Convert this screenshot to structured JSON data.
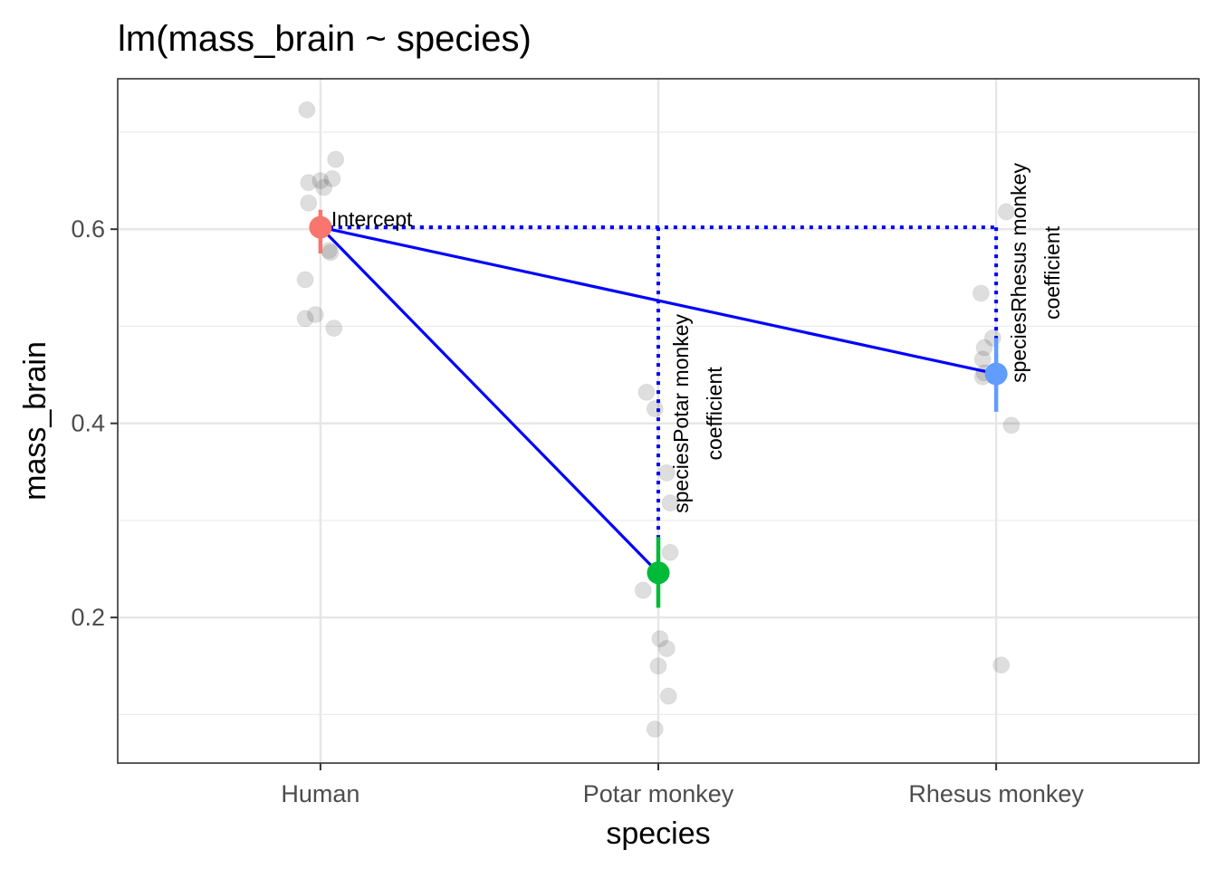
{
  "chart_data": {
    "type": "scatter",
    "title": "lm(mass_brain ~ species)",
    "xlabel": "species",
    "ylabel": "mass_brain",
    "categories": [
      "Human",
      "Potar monkey",
      "Rhesus monkey"
    ],
    "ylim": [
      0.05,
      0.755
    ],
    "yticks": [
      0.2,
      0.4,
      0.6
    ],
    "yticks_labels": [
      "0.2",
      "0.4",
      "0.6"
    ],
    "grid": true,
    "legend": "none",
    "raw_points": [
      {
        "category": "Human",
        "y": 0.723,
        "jitter": -0.04
      },
      {
        "category": "Human",
        "y": 0.672,
        "jitter": 0.045
      },
      {
        "category": "Human",
        "y": 0.652,
        "jitter": 0.035
      },
      {
        "category": "Human",
        "y": 0.648,
        "jitter": -0.035
      },
      {
        "category": "Human",
        "y": 0.65,
        "jitter": 0.0
      },
      {
        "category": "Human",
        "y": 0.643,
        "jitter": 0.01
      },
      {
        "category": "Human",
        "y": 0.627,
        "jitter": -0.035
      },
      {
        "category": "Human",
        "y": 0.603,
        "jitter": 0.005
      },
      {
        "category": "Human",
        "y": 0.578,
        "jitter": 0.025
      },
      {
        "category": "Human",
        "y": 0.576,
        "jitter": 0.03
      },
      {
        "category": "Human",
        "y": 0.548,
        "jitter": -0.045
      },
      {
        "category": "Human",
        "y": 0.512,
        "jitter": -0.015
      },
      {
        "category": "Human",
        "y": 0.508,
        "jitter": -0.045
      },
      {
        "category": "Human",
        "y": 0.498,
        "jitter": 0.04
      },
      {
        "category": "Potar monkey",
        "y": 0.432,
        "jitter": -0.035
      },
      {
        "category": "Potar monkey",
        "y": 0.415,
        "jitter": -0.01
      },
      {
        "category": "Potar monkey",
        "y": 0.349,
        "jitter": 0.025
      },
      {
        "category": "Potar monkey",
        "y": 0.318,
        "jitter": 0.035
      },
      {
        "category": "Potar monkey",
        "y": 0.267,
        "jitter": 0.035
      },
      {
        "category": "Potar monkey",
        "y": 0.228,
        "jitter": -0.045
      },
      {
        "category": "Potar monkey",
        "y": 0.178,
        "jitter": 0.005
      },
      {
        "category": "Potar monkey",
        "y": 0.168,
        "jitter": 0.025
      },
      {
        "category": "Potar monkey",
        "y": 0.15,
        "jitter": 0.0
      },
      {
        "category": "Potar monkey",
        "y": 0.119,
        "jitter": 0.03
      },
      {
        "category": "Potar monkey",
        "y": 0.085,
        "jitter": -0.01
      },
      {
        "category": "Rhesus monkey",
        "y": 0.618,
        "jitter": 0.03
      },
      {
        "category": "Rhesus monkey",
        "y": 0.534,
        "jitter": -0.045
      },
      {
        "category": "Rhesus monkey",
        "y": 0.488,
        "jitter": -0.01
      },
      {
        "category": "Rhesus monkey",
        "y": 0.478,
        "jitter": -0.035
      },
      {
        "category": "Rhesus monkey",
        "y": 0.466,
        "jitter": -0.04
      },
      {
        "category": "Rhesus monkey",
        "y": 0.452,
        "jitter": -0.035
      },
      {
        "category": "Rhesus monkey",
        "y": 0.448,
        "jitter": -0.04
      },
      {
        "category": "Rhesus monkey",
        "y": 0.398,
        "jitter": 0.045
      },
      {
        "category": "Rhesus monkey",
        "y": 0.151,
        "jitter": 0.015
      }
    ],
    "group_means": [
      {
        "category": "Human",
        "mean": 0.602,
        "ci": [
          0.575,
          0.62
        ],
        "color": "#F8766D"
      },
      {
        "category": "Potar monkey",
        "mean": 0.246,
        "ci": [
          0.21,
          0.283
        ],
        "color": "#00BA38"
      },
      {
        "category": "Rhesus monkey",
        "mean": 0.451,
        "ci": [
          0.412,
          0.488
        ],
        "color": "#619CFF"
      }
    ],
    "lines_color": "#0000FF",
    "points_color": "#bfbfbf",
    "annotations": [
      {
        "text": "Intercept",
        "category": "Human",
        "y": 0.602,
        "orientation": "horizontal"
      },
      {
        "text": "speciesPotar monkey",
        "category": "Potar monkey",
        "y": 0.41,
        "orientation": "vertical"
      },
      {
        "text": "coefficient",
        "category": "Potar monkey",
        "y": 0.41,
        "orientation": "vertical"
      },
      {
        "text": "speciesRhesus monkey",
        "category": "Rhesus monkey",
        "y": 0.555,
        "orientation": "vertical"
      },
      {
        "text": "coefficient",
        "category": "Rhesus monkey",
        "y": 0.555,
        "orientation": "vertical"
      }
    ]
  }
}
